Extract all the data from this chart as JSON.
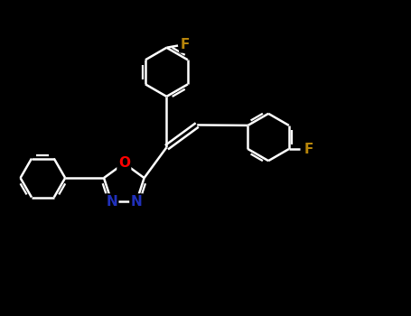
{
  "background_color": "#000000",
  "atom_colors": {
    "O": "#ff0000",
    "N": "#2030bb",
    "F": "#b8860b",
    "C": "#ffffff"
  },
  "bond_width": 1.8,
  "font_size": 10,
  "fig_width": 4.55,
  "fig_height": 3.5,
  "dpi": 100
}
